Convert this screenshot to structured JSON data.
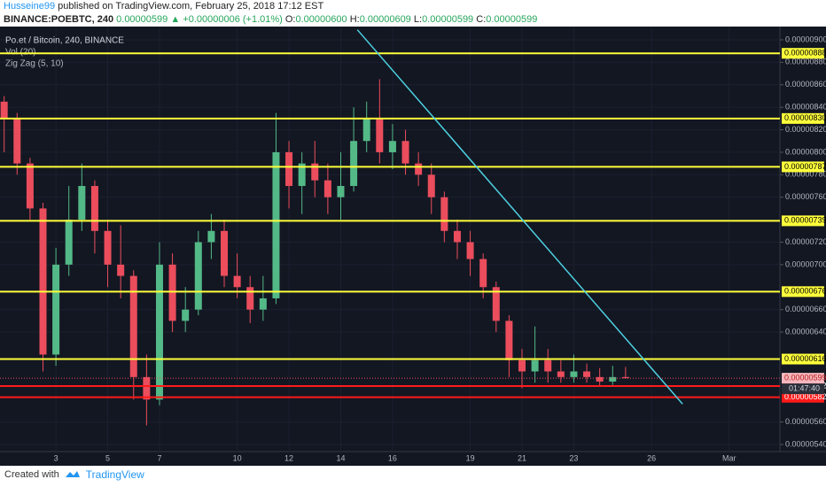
{
  "header": {
    "author": "Husseine99",
    "published": "published on TradingView.com, February 25, 2018 17:12 EST",
    "symbol": "BINANCE:POEBTC, 240",
    "last": "0.00000599",
    "change": "▲ +0.00000006 (+1.01%)",
    "ohlc": [
      {
        "key": "O:",
        "value": "0.00000600"
      },
      {
        "key": "H:",
        "value": "0.00000609"
      },
      {
        "key": "L:",
        "value": "0.00000599"
      },
      {
        "key": "C:",
        "value": "0.00000599"
      }
    ]
  },
  "footer": {
    "created": "Created with",
    "brand": "TradingView"
  },
  "chart_data": {
    "type": "candlestick",
    "title": "Po.et / Bitcoin, 240, BINANCE",
    "indicators": [
      "Vol (20)",
      "Zig Zag (5, 10)"
    ],
    "up_color": "#53b987",
    "down_color": "#eb4d5c",
    "grid": true,
    "x": [
      1,
      1.5,
      2,
      2.5,
      3,
      3.5,
      4,
      4.5,
      5,
      5.5,
      6,
      6.5,
      7,
      7.5,
      8,
      8.5,
      9,
      9.5,
      10,
      10.5,
      11,
      11.5,
      12,
      12.5,
      13,
      13.5,
      14,
      14.5,
      15,
      15.5,
      16,
      16.5,
      17,
      17.5,
      18,
      18.5,
      19,
      19.5,
      20,
      20.5,
      21,
      21.5,
      22,
      22.5,
      23,
      23.5,
      24,
      24.5,
      25
    ],
    "open": [
      8.45e-06,
      8.3e-06,
      7.9e-06,
      7.5e-06,
      6.2e-06,
      7e-06,
      7.4e-06,
      7.7e-06,
      7.3e-06,
      7e-06,
      6.9e-06,
      6e-06,
      5.8e-06,
      7e-06,
      6.5e-06,
      6.6e-06,
      7.2e-06,
      7.3e-06,
      6.9e-06,
      6.8e-06,
      6.6e-06,
      6.7e-06,
      8e-06,
      7.7e-06,
      7.9e-06,
      7.75e-06,
      7.6e-06,
      7.7e-06,
      8.1e-06,
      8.3e-06,
      8e-06,
      8.1e-06,
      7.9e-06,
      7.8e-06,
      7.6e-06,
      7.3e-06,
      7.2e-06,
      7.05e-06,
      6.8e-06,
      6.5e-06,
      6.15e-06,
      6.05e-06,
      6.15e-06,
      6.05e-06,
      6e-06,
      6.05e-06,
      6e-06,
      5.96e-06,
      6e-06
    ],
    "high": [
      8.5e-06,
      8.35e-06,
      7.95e-06,
      7.55e-06,
      7.15e-06,
      7.7e-06,
      7.9e-06,
      7.75e-06,
      7.4e-06,
      7.35e-06,
      6.95e-06,
      6.2e-06,
      7.2e-06,
      7.1e-06,
      6.8e-06,
      7.3e-06,
      7.45e-06,
      7.4e-06,
      7.1e-06,
      6.9e-06,
      6.9e-06,
      8.35e-06,
      8.1e-06,
      8e-06,
      8.1e-06,
      7.9e-06,
      8e-06,
      8.4e-06,
      8.45e-06,
      8.65e-06,
      8.25e-06,
      8.2e-06,
      8e-06,
      7.9e-06,
      7.65e-06,
      7.4e-06,
      7.3e-06,
      7.1e-06,
      6.85e-06,
      6.55e-06,
      6.25e-06,
      6.45e-06,
      6.25e-06,
      6.15e-06,
      6.2e-06,
      6.12e-06,
      6.08e-06,
      6.1e-06,
      6.09e-06
    ],
    "low": [
      8e-06,
      7.8e-06,
      7.4e-06,
      6.05e-06,
      6.1e-06,
      6.9e-06,
      7.3e-06,
      7.1e-06,
      6.8e-06,
      6.7e-06,
      5.8e-06,
      5.57e-06,
      5.75e-06,
      6.4e-06,
      6.4e-06,
      6.55e-06,
      7.05e-06,
      6.8e-06,
      6.7e-06,
      6.48e-06,
      6.5e-06,
      6.65e-06,
      7.5e-06,
      7.45e-06,
      7.6e-06,
      7.45e-06,
      7.4e-06,
      7.65e-06,
      8e-06,
      7.9e-06,
      7.85e-06,
      7.8e-06,
      7.7e-06,
      7.45e-06,
      7.2e-06,
      7.05e-06,
      6.9e-06,
      6.7e-06,
      6.4e-06,
      6e-06,
      5.9e-06,
      5.95e-06,
      5.95e-06,
      5.95e-06,
      5.95e-06,
      5.95e-06,
      5.92e-06,
      5.93e-06,
      5.99e-06
    ],
    "close": [
      8.3e-06,
      7.9e-06,
      7.5e-06,
      6.2e-06,
      7e-06,
      7.4e-06,
      7.7e-06,
      7.3e-06,
      7e-06,
      6.9e-06,
      6e-06,
      5.8e-06,
      7e-06,
      6.5e-06,
      6.6e-06,
      7.2e-06,
      7.3e-06,
      6.9e-06,
      6.8e-06,
      6.6e-06,
      6.7e-06,
      8e-06,
      7.7e-06,
      7.9e-06,
      7.75e-06,
      7.6e-06,
      7.7e-06,
      8.1e-06,
      8.3e-06,
      8e-06,
      8.1e-06,
      7.9e-06,
      7.8e-06,
      7.6e-06,
      7.3e-06,
      7.2e-06,
      7.05e-06,
      6.8e-06,
      6.5e-06,
      6.15e-06,
      6.05e-06,
      6.15e-06,
      6.05e-06,
      6e-06,
      6.05e-06,
      6e-06,
      5.96e-06,
      6e-06,
      5.99e-06
    ],
    "xlim": [
      0.84,
      30.96
    ],
    "xticks": [
      3,
      5,
      7,
      10,
      12,
      14,
      16,
      19,
      21,
      23,
      26,
      {
        "value": 29,
        "label": "Mar"
      }
    ],
    "ylim": [
      5.337e-06,
      9.118e-06
    ],
    "yticks": [
      {
        "value": 9e-06,
        "label": "0.00000900"
      },
      {
        "value": 8.8e-06,
        "label": "0.00000880"
      },
      {
        "value": 8.6e-06,
        "label": "0.00000860"
      },
      {
        "value": 8.4e-06,
        "label": "0.00000840"
      },
      {
        "value": 8.2e-06,
        "label": "0.00000820"
      },
      {
        "value": 8e-06,
        "label": "0.00000800"
      },
      {
        "value": 7.8e-06,
        "label": "0.00000780"
      },
      {
        "value": 7.6e-06,
        "label": "0.00000760"
      },
      {
        "value": 7.2e-06,
        "label": "0.00000720"
      },
      {
        "value": 7e-06,
        "label": "0.00000700"
      },
      {
        "value": 6.6e-06,
        "label": "0.00000660"
      },
      {
        "value": 6.4e-06,
        "label": "0.00000640"
      },
      {
        "value": 5.6e-06,
        "label": "0.00000560"
      },
      {
        "value": 5.4e-06,
        "label": "0.00000540"
      }
    ],
    "levels": [
      {
        "value": 8.88e-06,
        "label": "0.00000888",
        "color": "#ffff3b"
      },
      {
        "value": 8.3e-06,
        "label": "0.00000830",
        "color": "#ffff3b"
      },
      {
        "value": 7.87e-06,
        "label": "0.00000787",
        "color": "#ffff3b"
      },
      {
        "value": 7.39e-06,
        "label": "0.00000739",
        "color": "#ffff3b"
      },
      {
        "value": 6.76e-06,
        "label": "0.00000676",
        "color": "#ffff3b"
      },
      {
        "value": 6.16e-06,
        "label": "0.00000616",
        "color": "#ffff3b"
      },
      {
        "value": 5.92e-06,
        "label": "0.00000592",
        "color": "#ff1a1a"
      },
      {
        "value": 5.82e-06,
        "label": "0.00000582",
        "color": "#ff1a1a"
      }
    ],
    "current": {
      "value": 5.99e-06,
      "label": "0.00000599",
      "countdown": "01:47:40"
    },
    "trendline": {
      "x": [
        14.64,
        27.2
      ],
      "y": [
        9.09e-06,
        5.76e-06
      ],
      "color": "#4dd0e1"
    }
  }
}
